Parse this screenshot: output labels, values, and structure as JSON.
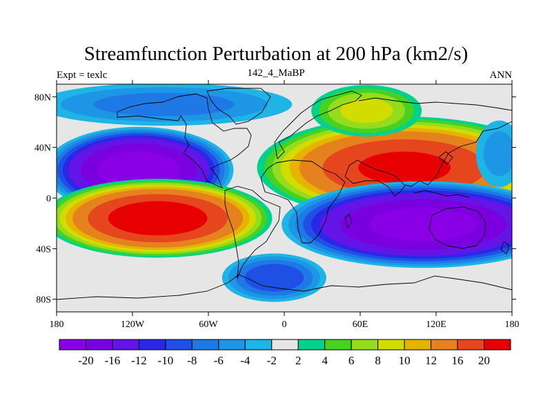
{
  "title": "Streamfunction Perturbation at 200 hPa (km2/s)",
  "subtitle_left": "Expt = texlc",
  "subtitle_center": "142_4_MaBP",
  "subtitle_right": "ANN",
  "map": {
    "projection": "cylindrical-equidistant",
    "lon_range": [
      -180,
      180
    ],
    "lat_range": [
      -90,
      90
    ],
    "x_ticks": [
      {
        "value": -180,
        "label": "180"
      },
      {
        "value": -120,
        "label": "120W"
      },
      {
        "value": -60,
        "label": "60W"
      },
      {
        "value": 0,
        "label": "0"
      },
      {
        "value": 60,
        "label": "60E"
      },
      {
        "value": 120,
        "label": "120E"
      },
      {
        "value": 180,
        "label": "180"
      }
    ],
    "y_ticks": [
      {
        "value": 80,
        "label": "80N"
      },
      {
        "value": 40,
        "label": "40N"
      },
      {
        "value": 0,
        "label": "0"
      },
      {
        "value": -40,
        "label": "40S"
      },
      {
        "value": -80,
        "label": "80S"
      }
    ],
    "background_color": "#e6e6e6",
    "field_blobs": [
      {
        "name": "neg-north-pacific",
        "lon": -115,
        "lat": 22,
        "rlon": 48,
        "rlat": 22,
        "value": -22
      },
      {
        "name": "pos-south-pacific",
        "lon": -100,
        "lat": -16,
        "rlon": 58,
        "rlat": 20,
        "value": 22
      },
      {
        "name": "pos-eurasia",
        "lon": 95,
        "lat": 24,
        "rlon": 75,
        "rlat": 26,
        "value": 20
      },
      {
        "name": "neg-indian-ocean",
        "lon": 110,
        "lat": -21,
        "rlon": 72,
        "rlat": 22,
        "value": -21
      },
      {
        "name": "neg-southern-atlantic",
        "lon": -8,
        "lat": -63,
        "rlon": 28,
        "rlat": 13,
        "value": -9
      },
      {
        "name": "neg-arctic",
        "lon": -95,
        "lat": 74,
        "rlon": 72,
        "rlat": 12,
        "value": -6
      },
      {
        "name": "pos-siberia",
        "lon": 65,
        "lat": 69,
        "rlon": 30,
        "rlat": 14,
        "value": 8
      },
      {
        "name": "neg-pacific-west",
        "lon": 170,
        "lat": 35,
        "rlon": 14,
        "rlat": 20,
        "value": -4
      }
    ]
  },
  "colorbar": {
    "colors": [
      "#8a00e6",
      "#7a00e0",
      "#6414e6",
      "#2828e6",
      "#1e50e6",
      "#1e78e6",
      "#1e96e6",
      "#1eb4e6",
      "#e6e6e6",
      "#00d28c",
      "#46d21e",
      "#96dc1e",
      "#d2dc00",
      "#e6b400",
      "#e6821e",
      "#e6461e",
      "#e60000"
    ],
    "labels": [
      "-20",
      "-16",
      "-12",
      "-10",
      "-8",
      "-6",
      "-4",
      "-2",
      "2",
      "4",
      "6",
      "8",
      "10",
      "12",
      "16",
      "20"
    ],
    "levels": [
      -20,
      -16,
      -12,
      -10,
      -8,
      -6,
      -4,
      -2,
      2,
      4,
      6,
      8,
      10,
      12,
      16,
      20
    ]
  }
}
